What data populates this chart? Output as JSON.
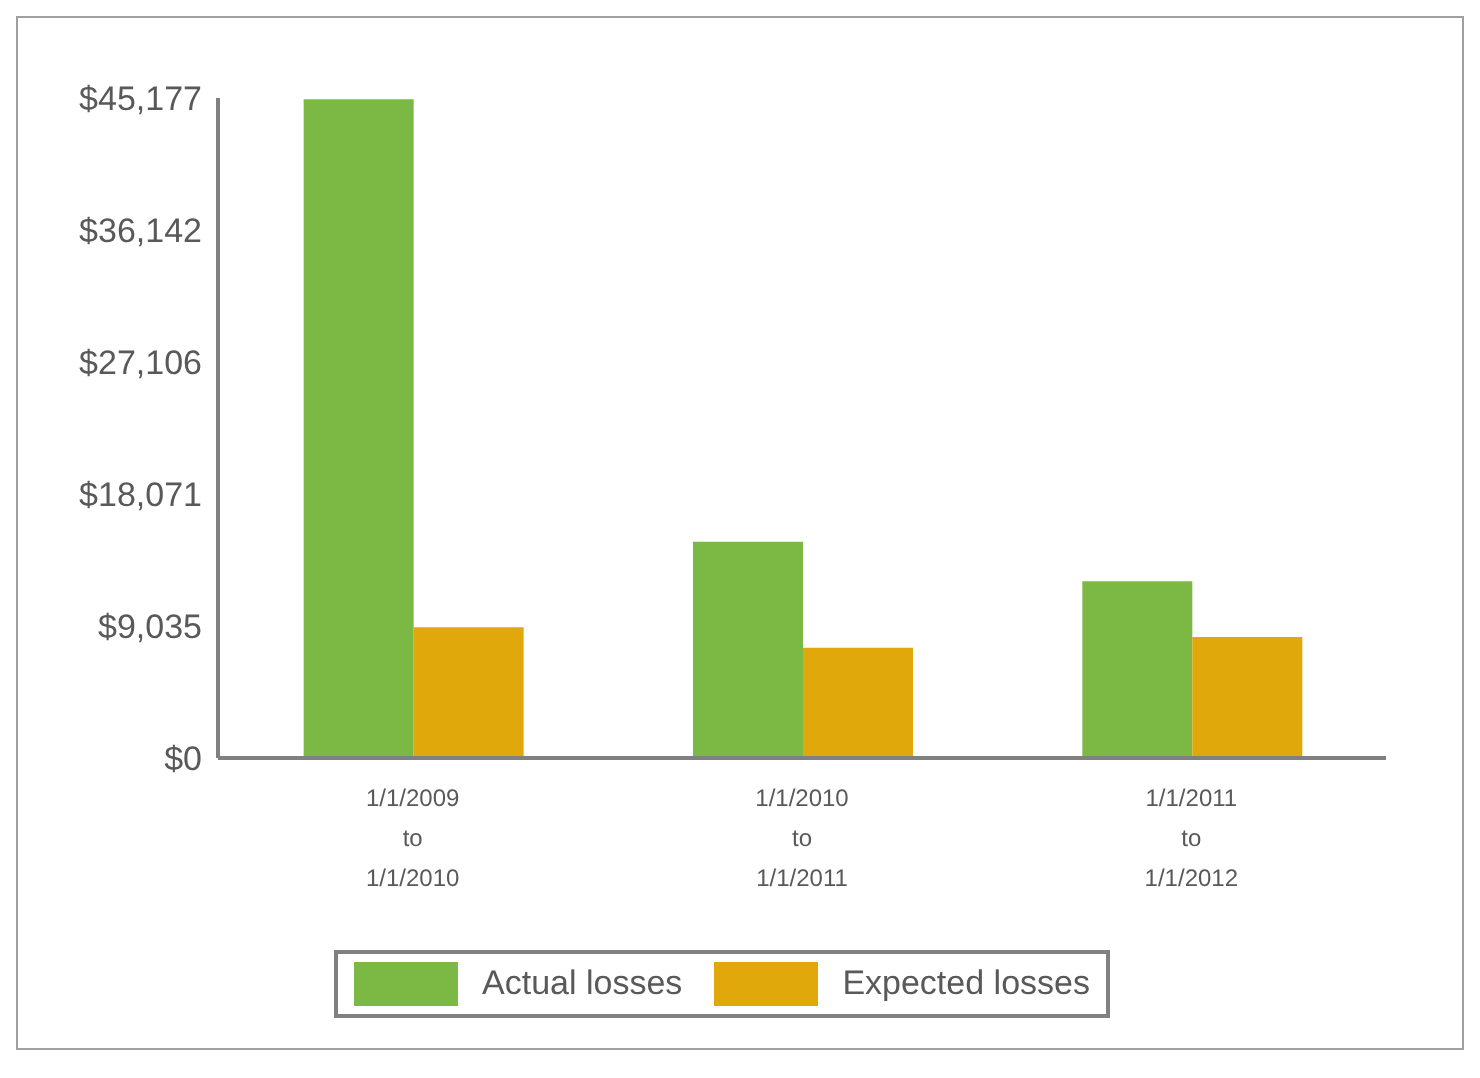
{
  "chart_data": {
    "type": "bar",
    "categories": [
      "1/1/2009 to 1/1/2010",
      "1/1/2010 to 1/1/2011",
      "1/1/2011 to 1/1/2012"
    ],
    "series": [
      {
        "name": "Actual losses",
        "color": "#7cb944",
        "values": [
          45100,
          14800,
          12100
        ]
      },
      {
        "name": "Expected losses",
        "color": "#e0a80a",
        "values": [
          8950,
          7550,
          8280
        ]
      }
    ],
    "ylim": [
      0,
      45177
    ],
    "yticks": [
      {
        "value": 0,
        "label": "$0"
      },
      {
        "value": 9035,
        "label": "$9,035"
      },
      {
        "value": 18071,
        "label": "$18,071"
      },
      {
        "value": 27106,
        "label": "$27,106"
      },
      {
        "value": 36142,
        "label": "$36,142"
      },
      {
        "value": 45177,
        "label": "$45,177"
      }
    ],
    "grid": false,
    "legend": "bottom"
  }
}
